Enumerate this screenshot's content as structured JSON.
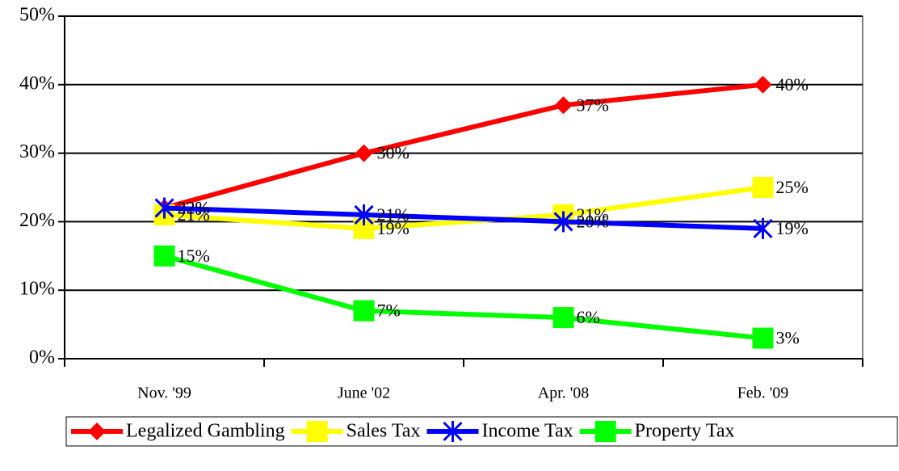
{
  "chart_data": {
    "type": "line",
    "categories": [
      "Nov. '99",
      "June '02",
      "Apr. '08",
      "Feb. '09"
    ],
    "series": [
      {
        "name": "Legalized Gambling",
        "color": "#ff0000",
        "marker": "diamond",
        "values": [
          22,
          30,
          37,
          40
        ],
        "value_labels": [
          "22%",
          "30%",
          "37%",
          "40%"
        ]
      },
      {
        "name": "Sales Tax",
        "color": "#ffff00",
        "marker": "square",
        "values": [
          21,
          19,
          21,
          25
        ],
        "value_labels": [
          "21%",
          "19%",
          "21%",
          "25%"
        ]
      },
      {
        "name": "Income Tax",
        "color": "#0000ff",
        "marker": "star",
        "values": [
          22,
          21,
          20,
          19
        ],
        "value_labels": [
          "22%",
          "21%",
          "20%",
          "19%"
        ]
      },
      {
        "name": "Property Tax",
        "color": "#00ff00",
        "marker": "square",
        "values": [
          15,
          7,
          6,
          3
        ],
        "value_labels": [
          "15%",
          "7%",
          "6%",
          "3%"
        ]
      }
    ],
    "ylim": [
      0,
      50
    ],
    "yticks": [
      {
        "value": 0,
        "label": "0%"
      },
      {
        "value": 10,
        "label": "10%"
      },
      {
        "value": 20,
        "label": "20%"
      },
      {
        "value": 30,
        "label": "30%"
      },
      {
        "value": 40,
        "label": "40%"
      },
      {
        "value": 50,
        "label": "50%"
      }
    ],
    "grid": true,
    "legend": "bottom"
  }
}
